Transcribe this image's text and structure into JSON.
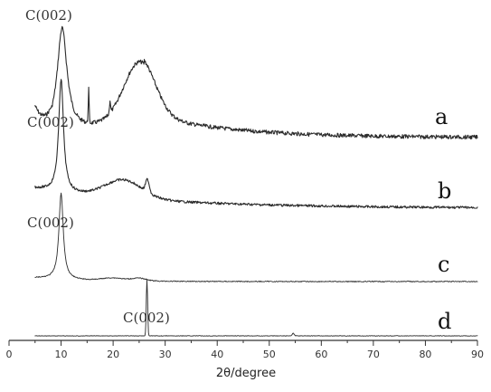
{
  "chart_data": {
    "type": "line",
    "title": "",
    "xlabel": "2θ/degree",
    "ylabel": "",
    "xlim": [
      0,
      90
    ],
    "x_ticks": [
      0,
      10,
      20,
      30,
      40,
      50,
      60,
      70,
      80,
      90
    ],
    "grid": false,
    "colors": {
      "trace": "#2b2b2b",
      "axis": "#333333",
      "text": "#222222"
    },
    "series": [
      {
        "label": "a",
        "peak_label": "C(002)",
        "peak_position": 10.2
      },
      {
        "label": "b",
        "peak_label": "C(002)",
        "peak_position": 10.0
      },
      {
        "label": "c",
        "peak_label": "C(002)",
        "peak_position": 10.0
      },
      {
        "label": "d",
        "peak_label": "C(002)",
        "peak_position": 26.5
      }
    ]
  }
}
